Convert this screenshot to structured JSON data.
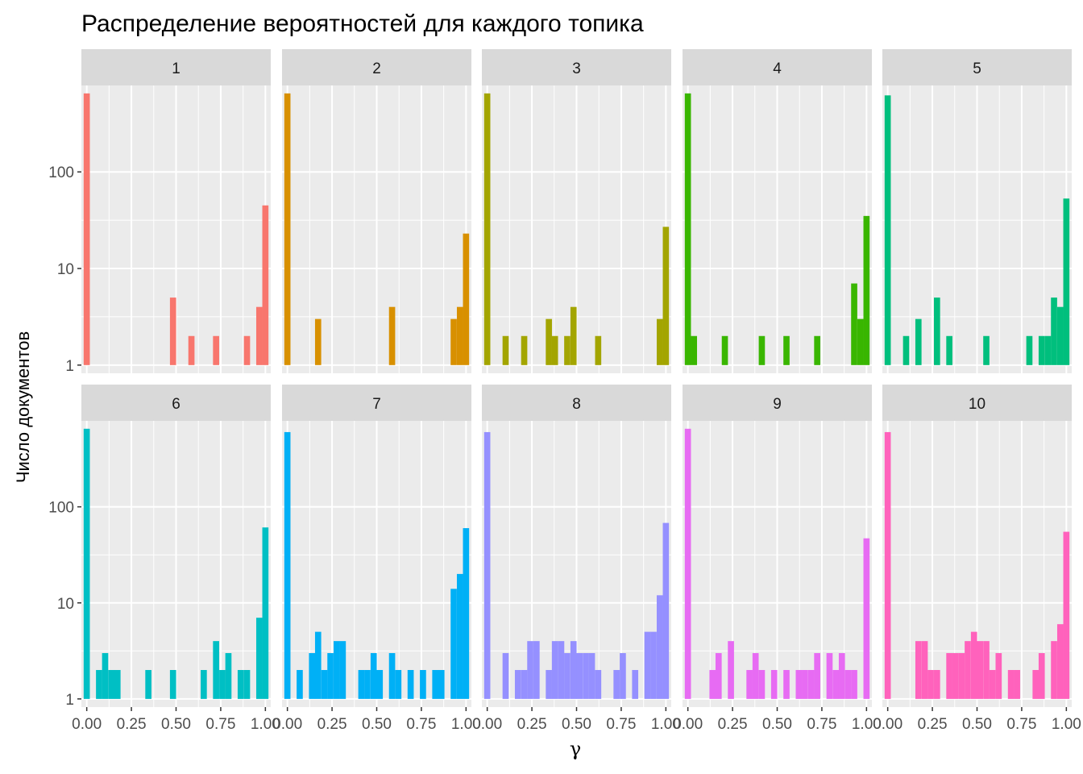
{
  "chart_data": {
    "type": "bar",
    "title": "Распределение вероятностей для каждого топика",
    "xlabel": "γ",
    "ylabel": "Число документов",
    "xlim": [
      -0.03,
      1.03
    ],
    "ylim": [
      1,
      700
    ],
    "y_scale": "log10",
    "x_ticks": [
      0,
      0.25,
      0.5,
      0.75,
      1
    ],
    "x_tick_labels": [
      "0.00",
      "0.25",
      "0.50",
      "0.75",
      "1.00"
    ],
    "y_ticks": [
      1,
      10,
      100
    ],
    "y_tick_labels": [
      "1",
      "10",
      "100"
    ],
    "bin_width": 0.0345,
    "grid": true,
    "facets": [
      {
        "label": "1",
        "color": "#F8766D",
        "bins": [
          {
            "x": 0.0,
            "count": 650
          },
          {
            "x": 0.483,
            "count": 5
          },
          {
            "x": 0.586,
            "count": 2
          },
          {
            "x": 0.724,
            "count": 2
          },
          {
            "x": 0.897,
            "count": 2
          },
          {
            "x": 0.966,
            "count": 4
          },
          {
            "x": 1.0,
            "count": 45
          }
        ]
      },
      {
        "label": "2",
        "color": "#D89000",
        "bins": [
          {
            "x": 0.0,
            "count": 650
          },
          {
            "x": 0.172,
            "count": 3
          },
          {
            "x": 0.586,
            "count": 4
          },
          {
            "x": 0.931,
            "count": 3
          },
          {
            "x": 0.966,
            "count": 4
          },
          {
            "x": 1.0,
            "count": 23
          }
        ]
      },
      {
        "label": "3",
        "color": "#A3A500",
        "bins": [
          {
            "x": 0.0,
            "count": 650
          },
          {
            "x": 0.103,
            "count": 2
          },
          {
            "x": 0.207,
            "count": 2
          },
          {
            "x": 0.345,
            "count": 3
          },
          {
            "x": 0.379,
            "count": 2
          },
          {
            "x": 0.448,
            "count": 2
          },
          {
            "x": 0.483,
            "count": 4
          },
          {
            "x": 0.621,
            "count": 2
          },
          {
            "x": 0.966,
            "count": 3
          },
          {
            "x": 1.0,
            "count": 27
          }
        ]
      },
      {
        "label": "4",
        "color": "#39B600",
        "bins": [
          {
            "x": 0.0,
            "count": 650
          },
          {
            "x": 0.034,
            "count": 2
          },
          {
            "x": 0.207,
            "count": 2
          },
          {
            "x": 0.414,
            "count": 2
          },
          {
            "x": 0.552,
            "count": 2
          },
          {
            "x": 0.724,
            "count": 2
          },
          {
            "x": 0.931,
            "count": 7
          },
          {
            "x": 0.966,
            "count": 3
          },
          {
            "x": 1.0,
            "count": 35
          }
        ]
      },
      {
        "label": "5",
        "color": "#00BF7D",
        "bins": [
          {
            "x": 0.0,
            "count": 620
          },
          {
            "x": 0.103,
            "count": 2
          },
          {
            "x": 0.172,
            "count": 3
          },
          {
            "x": 0.276,
            "count": 5
          },
          {
            "x": 0.345,
            "count": 2
          },
          {
            "x": 0.552,
            "count": 2
          },
          {
            "x": 0.793,
            "count": 2
          },
          {
            "x": 0.862,
            "count": 2
          },
          {
            "x": 0.897,
            "count": 2
          },
          {
            "x": 0.931,
            "count": 5
          },
          {
            "x": 0.966,
            "count": 4
          },
          {
            "x": 1.0,
            "count": 53
          }
        ]
      },
      {
        "label": "6",
        "color": "#00BFC4",
        "bins": [
          {
            "x": 0.0,
            "count": 650
          },
          {
            "x": 0.069,
            "count": 2
          },
          {
            "x": 0.103,
            "count": 3
          },
          {
            "x": 0.138,
            "count": 2
          },
          {
            "x": 0.172,
            "count": 2
          },
          {
            "x": 0.345,
            "count": 2
          },
          {
            "x": 0.483,
            "count": 2
          },
          {
            "x": 0.655,
            "count": 2
          },
          {
            "x": 0.724,
            "count": 4
          },
          {
            "x": 0.759,
            "count": 2
          },
          {
            "x": 0.793,
            "count": 3
          },
          {
            "x": 0.862,
            "count": 2
          },
          {
            "x": 0.897,
            "count": 2
          },
          {
            "x": 0.966,
            "count": 7
          },
          {
            "x": 1.0,
            "count": 61
          }
        ]
      },
      {
        "label": "7",
        "color": "#00B0F6",
        "bins": [
          {
            "x": 0.0,
            "count": 600
          },
          {
            "x": 0.069,
            "count": 2
          },
          {
            "x": 0.138,
            "count": 3
          },
          {
            "x": 0.172,
            "count": 5
          },
          {
            "x": 0.207,
            "count": 2
          },
          {
            "x": 0.241,
            "count": 3
          },
          {
            "x": 0.276,
            "count": 4
          },
          {
            "x": 0.31,
            "count": 4
          },
          {
            "x": 0.414,
            "count": 2
          },
          {
            "x": 0.448,
            "count": 2
          },
          {
            "x": 0.483,
            "count": 3
          },
          {
            "x": 0.517,
            "count": 2
          },
          {
            "x": 0.586,
            "count": 3
          },
          {
            "x": 0.621,
            "count": 2
          },
          {
            "x": 0.69,
            "count": 2
          },
          {
            "x": 0.759,
            "count": 2
          },
          {
            "x": 0.828,
            "count": 2
          },
          {
            "x": 0.862,
            "count": 2
          },
          {
            "x": 0.931,
            "count": 14
          },
          {
            "x": 0.966,
            "count": 20
          },
          {
            "x": 1.0,
            "count": 60
          }
        ]
      },
      {
        "label": "8",
        "color": "#9590FF",
        "bins": [
          {
            "x": 0.0,
            "count": 600
          },
          {
            "x": 0.103,
            "count": 3
          },
          {
            "x": 0.172,
            "count": 2
          },
          {
            "x": 0.207,
            "count": 2
          },
          {
            "x": 0.241,
            "count": 4
          },
          {
            "x": 0.276,
            "count": 4
          },
          {
            "x": 0.345,
            "count": 2
          },
          {
            "x": 0.379,
            "count": 4
          },
          {
            "x": 0.414,
            "count": 4
          },
          {
            "x": 0.448,
            "count": 3
          },
          {
            "x": 0.483,
            "count": 4
          },
          {
            "x": 0.517,
            "count": 3
          },
          {
            "x": 0.552,
            "count": 3
          },
          {
            "x": 0.586,
            "count": 3
          },
          {
            "x": 0.621,
            "count": 2
          },
          {
            "x": 0.724,
            "count": 2
          },
          {
            "x": 0.759,
            "count": 3
          },
          {
            "x": 0.828,
            "count": 2
          },
          {
            "x": 0.897,
            "count": 5
          },
          {
            "x": 0.931,
            "count": 5
          },
          {
            "x": 0.966,
            "count": 12
          },
          {
            "x": 1.0,
            "count": 68
          }
        ]
      },
      {
        "label": "9",
        "color": "#E76BF3",
        "bins": [
          {
            "x": 0.0,
            "count": 650
          },
          {
            "x": 0.138,
            "count": 2
          },
          {
            "x": 0.172,
            "count": 3
          },
          {
            "x": 0.241,
            "count": 4
          },
          {
            "x": 0.345,
            "count": 2
          },
          {
            "x": 0.379,
            "count": 3
          },
          {
            "x": 0.414,
            "count": 2
          },
          {
            "x": 0.483,
            "count": 2
          },
          {
            "x": 0.552,
            "count": 2
          },
          {
            "x": 0.621,
            "count": 2
          },
          {
            "x": 0.655,
            "count": 2
          },
          {
            "x": 0.69,
            "count": 2
          },
          {
            "x": 0.724,
            "count": 3
          },
          {
            "x": 0.793,
            "count": 3
          },
          {
            "x": 0.828,
            "count": 2
          },
          {
            "x": 0.862,
            "count": 3
          },
          {
            "x": 0.897,
            "count": 2
          },
          {
            "x": 0.931,
            "count": 2
          },
          {
            "x": 1.0,
            "count": 47
          }
        ]
      },
      {
        "label": "10",
        "color": "#FF62BC",
        "bins": [
          {
            "x": 0.0,
            "count": 600
          },
          {
            "x": 0.172,
            "count": 4
          },
          {
            "x": 0.207,
            "count": 4
          },
          {
            "x": 0.241,
            "count": 2
          },
          {
            "x": 0.276,
            "count": 2
          },
          {
            "x": 0.345,
            "count": 3
          },
          {
            "x": 0.379,
            "count": 3
          },
          {
            "x": 0.414,
            "count": 3
          },
          {
            "x": 0.448,
            "count": 4
          },
          {
            "x": 0.483,
            "count": 5
          },
          {
            "x": 0.517,
            "count": 4
          },
          {
            "x": 0.552,
            "count": 4
          },
          {
            "x": 0.586,
            "count": 2
          },
          {
            "x": 0.621,
            "count": 3
          },
          {
            "x": 0.69,
            "count": 2
          },
          {
            "x": 0.724,
            "count": 2
          },
          {
            "x": 0.828,
            "count": 2
          },
          {
            "x": 0.862,
            "count": 3
          },
          {
            "x": 0.931,
            "count": 4
          },
          {
            "x": 0.966,
            "count": 6
          },
          {
            "x": 1.0,
            "count": 55
          }
        ]
      }
    ]
  }
}
